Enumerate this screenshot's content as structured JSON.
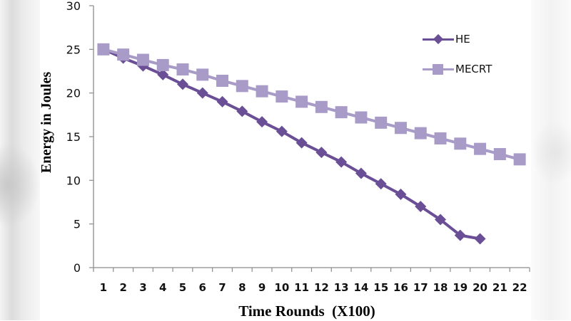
{
  "chart_data": {
    "type": "line",
    "title": "",
    "xlabel": "Time Rounds  (X100)",
    "ylabel": "Energy in Joules",
    "x": [
      1,
      2,
      3,
      4,
      5,
      6,
      7,
      8,
      9,
      10,
      11,
      12,
      13,
      14,
      15,
      16,
      17,
      18,
      19,
      20,
      21,
      22
    ],
    "categories": [
      "1",
      "2",
      "3",
      "4",
      "5",
      "6",
      "7",
      "8",
      "9",
      "10",
      "11",
      "12",
      "13",
      "14",
      "15",
      "16",
      "17",
      "18",
      "19",
      "20",
      "21",
      "22"
    ],
    "ylim": [
      0,
      30
    ],
    "yticks": [
      0,
      5,
      10,
      15,
      20,
      25,
      30
    ],
    "grid": false,
    "legend_position": "upper right (inside)",
    "series": [
      {
        "name": "HE",
        "marker": "diamond",
        "color": "#6A4E96",
        "values": [
          25.0,
          24.0,
          23.1,
          22.1,
          21.0,
          20.0,
          19.0,
          17.9,
          16.7,
          15.6,
          14.3,
          13.2,
          12.1,
          10.8,
          9.6,
          8.4,
          7.0,
          5.5,
          3.7,
          3.3,
          null,
          null
        ]
      },
      {
        "name": "MECRT",
        "marker": "square",
        "color": "#A89BC8",
        "values": [
          25.0,
          24.4,
          23.8,
          23.2,
          22.7,
          22.1,
          21.4,
          20.8,
          20.2,
          19.6,
          19.0,
          18.4,
          17.8,
          17.2,
          16.6,
          16.0,
          15.4,
          14.8,
          14.2,
          13.6,
          13.0,
          12.4
        ]
      }
    ]
  },
  "legend": {
    "items": [
      {
        "label": "HE",
        "marker": "diamond-icon",
        "color": "#6A4E96"
      },
      {
        "label": "MECRT",
        "marker": "square-icon",
        "color": "#A89BC8"
      }
    ]
  },
  "colors": {
    "axis": "#8c8c8c",
    "tick_label": "#111111"
  }
}
